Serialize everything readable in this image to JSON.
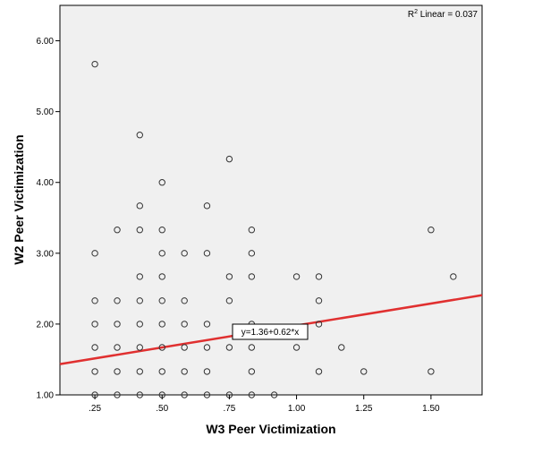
{
  "chart_data": {
    "type": "scatter",
    "xlabel": "W3 Peer Victimization",
    "ylabel": "W2 Peer Victimization",
    "xlim": [
      0.12,
      1.69
    ],
    "ylim": [
      1.0,
      6.5
    ],
    "x_ticks": [
      0.25,
      0.5,
      0.75,
      1.0,
      1.25,
      1.5
    ],
    "x_tick_labels": [
      ".25",
      ".50",
      ".75",
      "1.00",
      "1.25",
      "1.50"
    ],
    "y_ticks": [
      1.0,
      2.0,
      3.0,
      4.0,
      5.0,
      6.0
    ],
    "y_tick_labels": [
      "1.00",
      "2.00",
      "3.00",
      "4.00",
      "5.00",
      "6.00"
    ],
    "grid": false,
    "plot_background": "#f0f0f0",
    "marker_color": "#333333",
    "fit_line_color": "#e03030",
    "r2_prefix": "R",
    "r2_sup": "2",
    "r2_text": " Linear = 0.037",
    "fit_label": "y=1.36+0.62*x",
    "fit": {
      "intercept": 1.36,
      "slope": 0.62
    },
    "points": [
      {
        "x": 0.25,
        "y": 5.67
      },
      {
        "x": 0.25,
        "y": 3.0
      },
      {
        "x": 0.25,
        "y": 2.33
      },
      {
        "x": 0.25,
        "y": 2.0
      },
      {
        "x": 0.25,
        "y": 1.67
      },
      {
        "x": 0.25,
        "y": 1.33
      },
      {
        "x": 0.25,
        "y": 1.0
      },
      {
        "x": 0.333,
        "y": 3.33
      },
      {
        "x": 0.333,
        "y": 2.33
      },
      {
        "x": 0.333,
        "y": 2.0
      },
      {
        "x": 0.333,
        "y": 1.67
      },
      {
        "x": 0.333,
        "y": 1.33
      },
      {
        "x": 0.333,
        "y": 1.0
      },
      {
        "x": 0.417,
        "y": 4.67
      },
      {
        "x": 0.417,
        "y": 3.67
      },
      {
        "x": 0.417,
        "y": 3.33
      },
      {
        "x": 0.417,
        "y": 2.67
      },
      {
        "x": 0.417,
        "y": 2.33
      },
      {
        "x": 0.417,
        "y": 2.0
      },
      {
        "x": 0.417,
        "y": 1.67
      },
      {
        "x": 0.417,
        "y": 1.33
      },
      {
        "x": 0.417,
        "y": 1.0
      },
      {
        "x": 0.5,
        "y": 4.0
      },
      {
        "x": 0.5,
        "y": 3.33
      },
      {
        "x": 0.5,
        "y": 3.0
      },
      {
        "x": 0.5,
        "y": 2.67
      },
      {
        "x": 0.5,
        "y": 2.33
      },
      {
        "x": 0.5,
        "y": 2.0
      },
      {
        "x": 0.5,
        "y": 1.67
      },
      {
        "x": 0.5,
        "y": 1.33
      },
      {
        "x": 0.5,
        "y": 1.0
      },
      {
        "x": 0.583,
        "y": 3.0
      },
      {
        "x": 0.583,
        "y": 2.33
      },
      {
        "x": 0.583,
        "y": 2.0
      },
      {
        "x": 0.583,
        "y": 1.67
      },
      {
        "x": 0.583,
        "y": 1.33
      },
      {
        "x": 0.583,
        "y": 1.0
      },
      {
        "x": 0.667,
        "y": 3.67
      },
      {
        "x": 0.667,
        "y": 3.0
      },
      {
        "x": 0.667,
        "y": 2.0
      },
      {
        "x": 0.667,
        "y": 1.67
      },
      {
        "x": 0.667,
        "y": 1.33
      },
      {
        "x": 0.667,
        "y": 1.0
      },
      {
        "x": 0.75,
        "y": 4.33
      },
      {
        "x": 0.75,
        "y": 2.67
      },
      {
        "x": 0.75,
        "y": 2.33
      },
      {
        "x": 0.75,
        "y": 1.67
      },
      {
        "x": 0.75,
        "y": 1.0
      },
      {
        "x": 0.833,
        "y": 3.33
      },
      {
        "x": 0.833,
        "y": 3.0
      },
      {
        "x": 0.833,
        "y": 2.67
      },
      {
        "x": 0.833,
        "y": 2.0
      },
      {
        "x": 0.833,
        "y": 1.67
      },
      {
        "x": 0.833,
        "y": 1.33
      },
      {
        "x": 0.833,
        "y": 1.0
      },
      {
        "x": 0.917,
        "y": 1.0
      },
      {
        "x": 1.0,
        "y": 2.67
      },
      {
        "x": 1.0,
        "y": 1.67
      },
      {
        "x": 1.083,
        "y": 2.67
      },
      {
        "x": 1.083,
        "y": 2.33
      },
      {
        "x": 1.083,
        "y": 2.0
      },
      {
        "x": 1.083,
        "y": 1.33
      },
      {
        "x": 1.167,
        "y": 1.67
      },
      {
        "x": 1.25,
        "y": 1.33
      },
      {
        "x": 1.5,
        "y": 3.33
      },
      {
        "x": 1.5,
        "y": 1.33
      },
      {
        "x": 1.583,
        "y": 2.67
      }
    ]
  }
}
